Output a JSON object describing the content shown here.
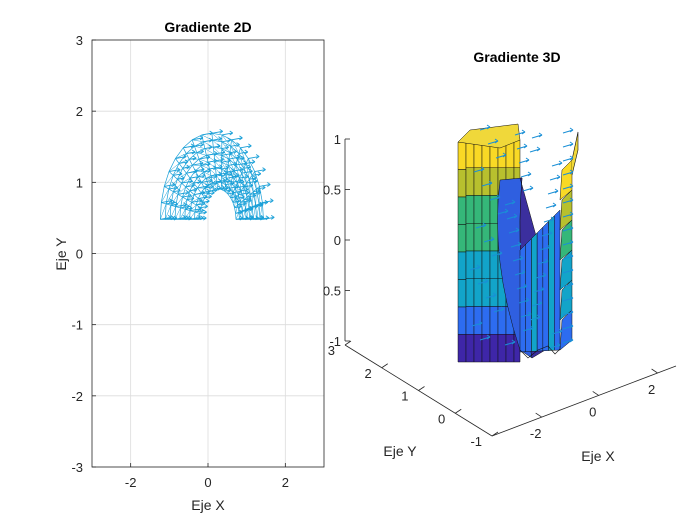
{
  "chart_data": [
    {
      "type": "quiver",
      "title": "Gradiente 2D",
      "xlabel": "Eje X",
      "ylabel": "Eje Y",
      "xlim": [
        -3,
        3
      ],
      "ylim": [
        -3,
        3
      ],
      "xticks": [
        "-2",
        "0",
        "2"
      ],
      "yticks": [
        "3",
        "2",
        "1",
        "0",
        "-1",
        "-2",
        "-3"
      ],
      "grid": true,
      "arch": {
        "rows": 9,
        "inner_radius": 0.55,
        "outer_radius": 1.55,
        "center": [
          0.1,
          0.3
        ],
        "angle_range_deg": [
          0,
          180
        ]
      },
      "color": "#1aa0d8"
    },
    {
      "type": "surface3d",
      "title": "Gradiente 3D",
      "xlabel": "Eje X",
      "ylabel": "Eje Y",
      "zlim": [
        -1,
        1
      ],
      "zticks": [
        "1",
        "0.5",
        "0",
        "0.5",
        "-1"
      ],
      "xticks": [
        "-2",
        "0",
        "2"
      ],
      "yticks": [
        "3",
        "2",
        "1",
        "0",
        "-1"
      ],
      "colormap": [
        "#3e26a8",
        "#2d6cf0",
        "#12a4c9",
        "#35b779",
        "#b8c02e",
        "#f9d925"
      ],
      "quiver_color": "#1a8fd6"
    }
  ]
}
